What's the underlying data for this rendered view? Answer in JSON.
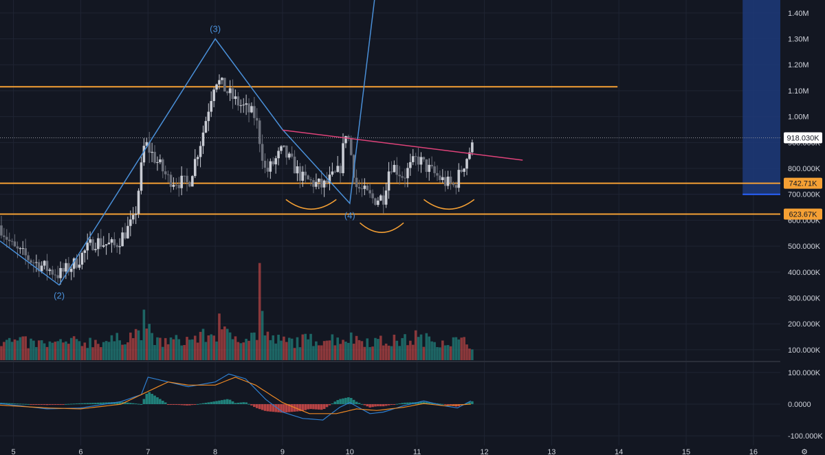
{
  "chart_data": {
    "type": "candlestick",
    "grid": true,
    "colors": {
      "background": "#131722",
      "grid": "#1f2433",
      "up": "#c9ccd4",
      "down": "#6b6f7a",
      "level": "#f5a034",
      "wave": "#4a90d9",
      "neckline": "#e0437a",
      "shoulders": "#f5a034",
      "target_box": "#1d3a7a",
      "volume_up": "#26a69a",
      "volume_down": "#ef5350",
      "macd_line": "#2f7fd0",
      "signal_line": "#f08a24",
      "hist_up": "#26a69a",
      "hist_down": "#ef5350",
      "tag_orange_bg": "#f5a034",
      "tag_white_bg": "#ffffff"
    },
    "x_axis": {
      "range": [
        4.8,
        16.4
      ],
      "tick_labels": [
        "5",
        "6",
        "7",
        "8",
        "9",
        "10",
        "11",
        "12",
        "13",
        "14",
        "15",
        "16"
      ],
      "tick_values": [
        5,
        6,
        7,
        8,
        9,
        10,
        11,
        12,
        13,
        14,
        15,
        16
      ]
    },
    "price_axis": {
      "range": [
        60000,
        1450000
      ],
      "tick_labels": [
        "1.40M",
        "1.30M",
        "1.20M",
        "1.10M",
        "1.00M",
        "900.000K",
        "800.000K",
        "700.000K",
        "600.000K",
        "500.000K",
        "400.000K",
        "300.000K",
        "200.000K",
        "100.000K"
      ],
      "tick_values": [
        1400000,
        1300000,
        1200000,
        1100000,
        1000000,
        900000,
        800000,
        700000,
        600000,
        500000,
        400000,
        300000,
        200000,
        100000
      ]
    },
    "macd_axis": {
      "range": [
        -130000,
        130000
      ],
      "tick_labels": [
        "100.000K",
        "0.0000",
        "-100.000K"
      ],
      "tick_values": [
        100000,
        0,
        -100000
      ]
    },
    "price_tags": [
      {
        "label": "918.030K",
        "value": 918030,
        "style": "white"
      },
      {
        "label": "742.71K",
        "value": 742710,
        "style": "orange"
      },
      {
        "label": "623.67K",
        "value": 623670,
        "style": "orange"
      }
    ],
    "horizontal_levels": [
      {
        "value": 1115000,
        "x_start": 4.8,
        "x_end": 13.98
      },
      {
        "value": 742710,
        "x_start": 4.8,
        "x_end": 16.4
      },
      {
        "value": 623670,
        "x_start": 4.8,
        "x_end": 16.4
      }
    ],
    "current_price_line": 918030,
    "waves": [
      {
        "label": "(2)",
        "x": 5.68,
        "y": 350000
      },
      {
        "label": "(3)",
        "x": 8.0,
        "y": 1300000
      },
      {
        "label": "(4)",
        "x": 10.0,
        "y": 660000
      }
    ],
    "wave_path": [
      [
        4.8,
        520000
      ],
      [
        5.68,
        350000
      ],
      [
        8.0,
        1300000
      ],
      [
        9.0,
        950000
      ],
      [
        10.0,
        665000
      ],
      [
        10.4,
        1520000
      ]
    ],
    "neckline": [
      [
        9.0,
        948000
      ],
      [
        12.57,
        832000
      ]
    ],
    "shoulder_arcs": [
      {
        "x1": 9.05,
        "x2": 9.8,
        "y": 680000
      },
      {
        "x1": 10.15,
        "x2": 10.8,
        "y": 590000
      },
      {
        "x1": 11.1,
        "x2": 11.85,
        "y": 680000
      }
    ],
    "target_box": {
      "x1": 15.84,
      "x2": 16.66,
      "y_top": 1460000,
      "y_bottom": 700000
    },
    "price_anchors": [
      [
        4.8,
        580000
      ],
      [
        5.0,
        490000
      ],
      [
        5.3,
        440000
      ],
      [
        5.68,
        390000
      ],
      [
        5.9,
        430000
      ],
      [
        6.2,
        520000
      ],
      [
        6.5,
        500000
      ],
      [
        6.8,
        600000
      ],
      [
        6.95,
        900000
      ],
      [
        7.3,
        760000
      ],
      [
        7.6,
        740000
      ],
      [
        7.8,
        920000
      ],
      [
        8.0,
        1150000
      ],
      [
        8.3,
        1060000
      ],
      [
        8.6,
        1000000
      ],
      [
        8.75,
        780000
      ],
      [
        9.0,
        870000
      ],
      [
        9.3,
        760000
      ],
      [
        9.6,
        730000
      ],
      [
        9.85,
        790000
      ],
      [
        9.95,
        960000
      ],
      [
        10.1,
        730000
      ],
      [
        10.35,
        680000
      ],
      [
        10.5,
        690000
      ],
      [
        10.6,
        820000
      ],
      [
        10.8,
        770000
      ],
      [
        11.0,
        840000
      ],
      [
        11.2,
        790000
      ],
      [
        11.4,
        750000
      ],
      [
        11.55,
        730000
      ],
      [
        11.8,
        880000
      ]
    ],
    "volume_anchors": [
      [
        4.8,
        135000
      ],
      [
        5.5,
        120000
      ],
      [
        6.0,
        130000
      ],
      [
        6.5,
        135000
      ],
      [
        6.9,
        170000
      ],
      [
        7.1,
        130000
      ],
      [
        7.5,
        135000
      ],
      [
        8.0,
        160000
      ],
      [
        8.5,
        150000
      ],
      [
        8.65,
        160000
      ],
      [
        9.0,
        130000
      ],
      [
        9.5,
        140000
      ],
      [
        10.0,
        145000
      ],
      [
        10.5,
        130000
      ],
      [
        11.0,
        140000
      ],
      [
        11.5,
        135000
      ],
      [
        11.8,
        125000
      ]
    ],
    "volume_spikes": [
      {
        "x": 8.65,
        "value": 435000,
        "dir": "down"
      },
      {
        "x": 6.93,
        "value": 255000,
        "dir": "up"
      },
      {
        "x": 7.0,
        "value": 200000,
        "dir": "up"
      },
      {
        "x": 8.05,
        "value": 240000,
        "dir": "down"
      },
      {
        "x": 8.7,
        "value": 250000,
        "dir": "up"
      },
      {
        "x": 8.1,
        "value": 190000,
        "dir": "down"
      },
      {
        "x": 10.97,
        "value": 175000,
        "dir": "down"
      }
    ],
    "macd_line_anchors": [
      [
        4.8,
        2000
      ],
      [
        5.5,
        -15000
      ],
      [
        6.0,
        -12000
      ],
      [
        6.6,
        8000
      ],
      [
        6.9,
        30000
      ],
      [
        7.0,
        85000
      ],
      [
        7.3,
        70000
      ],
      [
        7.6,
        55000
      ],
      [
        8.0,
        70000
      ],
      [
        8.2,
        95000
      ],
      [
        8.45,
        80000
      ],
      [
        8.75,
        15000
      ],
      [
        9.0,
        -25000
      ],
      [
        9.3,
        -45000
      ],
      [
        9.6,
        -50000
      ],
      [
        9.85,
        -10000
      ],
      [
        10.0,
        5000
      ],
      [
        10.3,
        -30000
      ],
      [
        10.5,
        -25000
      ],
      [
        10.8,
        -5000
      ],
      [
        11.1,
        10000
      ],
      [
        11.4,
        -5000
      ],
      [
        11.6,
        -12000
      ],
      [
        11.8,
        10000
      ]
    ],
    "signal_line_anchors": [
      [
        4.8,
        -3000
      ],
      [
        5.5,
        -12000
      ],
      [
        6.0,
        -15000
      ],
      [
        6.6,
        0
      ],
      [
        7.0,
        40000
      ],
      [
        7.3,
        70000
      ],
      [
        7.6,
        60000
      ],
      [
        8.0,
        60000
      ],
      [
        8.3,
        85000
      ],
      [
        8.6,
        60000
      ],
      [
        9.0,
        5000
      ],
      [
        9.4,
        -30000
      ],
      [
        9.8,
        -30000
      ],
      [
        10.1,
        -15000
      ],
      [
        10.4,
        -20000
      ],
      [
        10.8,
        -10000
      ],
      [
        11.1,
        2000
      ],
      [
        11.4,
        -5000
      ],
      [
        11.8,
        0
      ]
    ]
  }
}
